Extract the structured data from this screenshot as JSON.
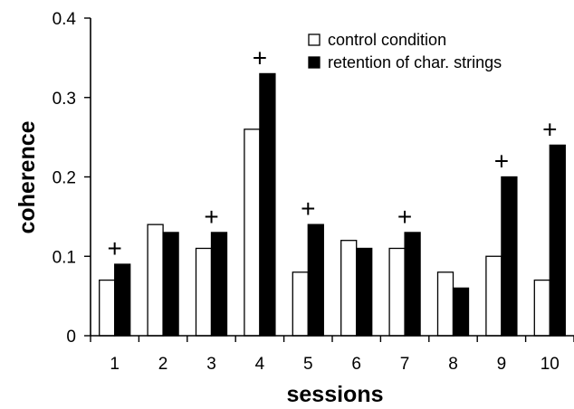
{
  "chart_data": {
    "type": "bar",
    "title": "",
    "xlabel": "sessions",
    "ylabel": "coherence",
    "ylim": [
      0,
      0.4
    ],
    "yticks": [
      "0",
      "0.1",
      "0.2",
      "0.3",
      "0.4"
    ],
    "ytick_values": [
      0,
      0.1,
      0.2,
      0.3,
      0.4
    ],
    "categories": [
      "1",
      "2",
      "3",
      "4",
      "5",
      "6",
      "7",
      "8",
      "9",
      "10"
    ],
    "series": [
      {
        "name": "control condition",
        "color": "#ffffff",
        "values": [
          0.07,
          0.14,
          0.11,
          0.26,
          0.08,
          0.12,
          0.11,
          0.08,
          0.1,
          0.07
        ]
      },
      {
        "name": "retention of char. strings",
        "color": "#000000",
        "values": [
          0.09,
          0.13,
          0.13,
          0.33,
          0.14,
          0.11,
          0.13,
          0.06,
          0.2,
          0.24
        ]
      }
    ],
    "significance_marker": "+",
    "significant_sessions": [
      "1",
      "3",
      "4",
      "5",
      "7",
      "9",
      "10"
    ],
    "legend_position": "top-right",
    "grid": false
  }
}
